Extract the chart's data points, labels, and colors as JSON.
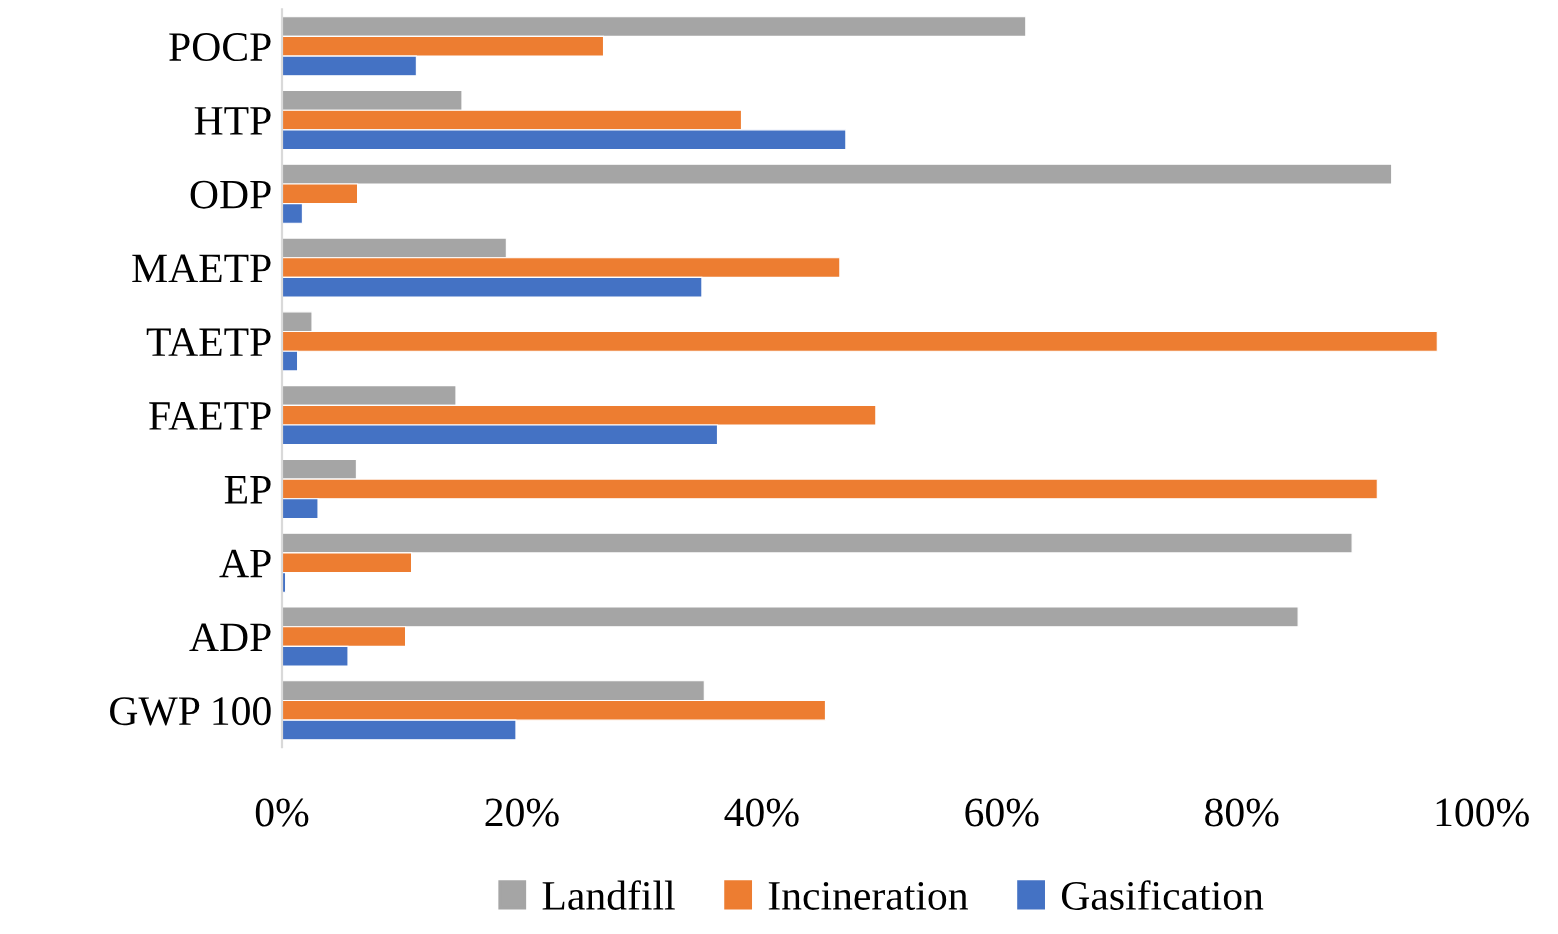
{
  "chart_data": {
    "type": "bar",
    "orientation": "horizontal",
    "categories": [
      "POCP",
      "HTP",
      "ODP",
      "MAETP",
      "TAETP",
      "FAETP",
      "EP",
      "AP",
      "ADP",
      "GWP 100"
    ],
    "series": [
      {
        "name": "Landfill",
        "color": "#a5a5a5",
        "values": [
          62,
          15,
          92.5,
          18.7,
          2.5,
          14.5,
          6.2,
          89.2,
          84.7,
          35.2
        ]
      },
      {
        "name": "Incineration",
        "color": "#ed7d31",
        "values": [
          26.8,
          38.3,
          6.3,
          46.5,
          96.3,
          49.5,
          91.3,
          10.8,
          10.3,
          45.3
        ]
      },
      {
        "name": "Gasification",
        "color": "#4472c4",
        "values": [
          11.2,
          47,
          1.7,
          35,
          1.3,
          36.3,
          3,
          0.3,
          5.5,
          19.5
        ]
      }
    ],
    "xlim": [
      0,
      100
    ],
    "xticks": [
      {
        "value": 0,
        "label": "0%"
      },
      {
        "value": 20,
        "label": "20%"
      },
      {
        "value": 40,
        "label": "40%"
      },
      {
        "value": 60,
        "label": "60%"
      },
      {
        "value": 80,
        "label": "80%"
      },
      {
        "value": 100,
        "label": "100%"
      }
    ],
    "grid": false,
    "legend": "bottom"
  }
}
